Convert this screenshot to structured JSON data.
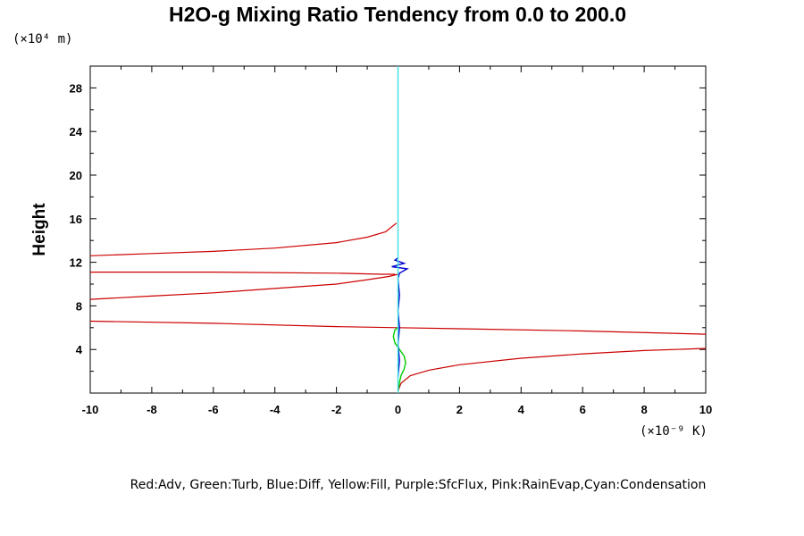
{
  "chart_data": {
    "type": "line",
    "title": "H2O-g Mixing Ratio Tendency from 0.0 to 200.0",
    "ylabel": "Height",
    "y_unit": "(×10⁴ m)",
    "x_unit": "(×10⁻⁹ K)",
    "xlim": [
      -10,
      10
    ],
    "ylim": [
      0,
      30
    ],
    "x_ticks": [
      "-10",
      "-8",
      "-6",
      "-4",
      "-2",
      "0",
      "2",
      "4",
      "6",
      "8",
      "10"
    ],
    "y_ticks": [
      "4",
      "8",
      "12",
      "16",
      "20",
      "24",
      "28"
    ],
    "grid": false,
    "legend_text": "Red:Adv, Green:Turb, Blue:Diff, Yellow:Fill, Purple:SfcFlux, Pink:RainEvap,Cyan:Condensation",
    "colors": {
      "adv": "#cc0000",
      "turb": "#00cc00",
      "diff": "#0000cc",
      "condensation": "#40e0e0",
      "axis": "#000000"
    },
    "series": [
      {
        "name": "Adv",
        "color": "#cc0000",
        "segments": [
          [
            [
              -10,
              12.6
            ],
            [
              -8,
              12.8
            ],
            [
              -6,
              13.0
            ],
            [
              -4,
              13.3
            ],
            [
              -2,
              13.8
            ],
            [
              -1,
              14.3
            ],
            [
              -0.4,
              14.8
            ],
            [
              -0.05,
              15.6
            ]
          ],
          [
            [
              -10,
              11.1
            ],
            [
              -6,
              11.1
            ],
            [
              -2,
              11.0
            ],
            [
              -0.5,
              10.9
            ],
            [
              -0.1,
              10.9
            ]
          ],
          [
            [
              -10,
              8.6
            ],
            [
              -8,
              8.9
            ],
            [
              -6,
              9.2
            ],
            [
              -4,
              9.6
            ],
            [
              -2,
              10.0
            ],
            [
              -1,
              10.4
            ],
            [
              -0.3,
              10.7
            ],
            [
              0,
              10.9
            ]
          ],
          [
            [
              -10,
              6.6
            ],
            [
              -6,
              6.4
            ],
            [
              -2,
              6.1
            ],
            [
              0,
              6.0
            ],
            [
              2,
              5.9
            ],
            [
              6,
              5.7
            ],
            [
              10,
              5.4
            ]
          ],
          [
            [
              0,
              0.2
            ],
            [
              0.1,
              0.9
            ],
            [
              0.4,
              1.6
            ],
            [
              1,
              2.1
            ],
            [
              2,
              2.6
            ],
            [
              4,
              3.2
            ],
            [
              6,
              3.6
            ],
            [
              8,
              3.9
            ],
            [
              10,
              4.1
            ]
          ]
        ]
      },
      {
        "name": "Turb",
        "color": "#00cc00",
        "segments": [
          [
            [
              0,
              0.2
            ],
            [
              0.05,
              1.0
            ],
            [
              0.1,
              1.6
            ],
            [
              0.2,
              2.2
            ],
            [
              0.25,
              2.8
            ],
            [
              0.2,
              3.4
            ],
            [
              0.05,
              4.0
            ],
            [
              -0.1,
              4.6
            ],
            [
              -0.15,
              5.2
            ],
            [
              -0.1,
              5.8
            ],
            [
              0,
              6.0
            ]
          ]
        ]
      },
      {
        "name": "Diff",
        "color": "#0000cc",
        "segments": [
          [
            [
              0,
              1.5
            ],
            [
              0.05,
              3.0
            ],
            [
              0.0,
              4.5
            ],
            [
              0.05,
              6.0
            ],
            [
              0.0,
              7.5
            ],
            [
              0.05,
              9.0
            ],
            [
              0.0,
              10.5
            ],
            [
              0.05,
              11.0
            ],
            [
              0.3,
              11.4
            ],
            [
              -0.2,
              11.6
            ],
            [
              0.2,
              11.9
            ],
            [
              -0.1,
              12.2
            ],
            [
              0,
              12.4
            ]
          ]
        ]
      },
      {
        "name": "Condensation",
        "color": "#40e0e0",
        "segments": [
          [
            [
              0,
              0
            ],
            [
              0,
              30
            ]
          ]
        ]
      }
    ]
  }
}
